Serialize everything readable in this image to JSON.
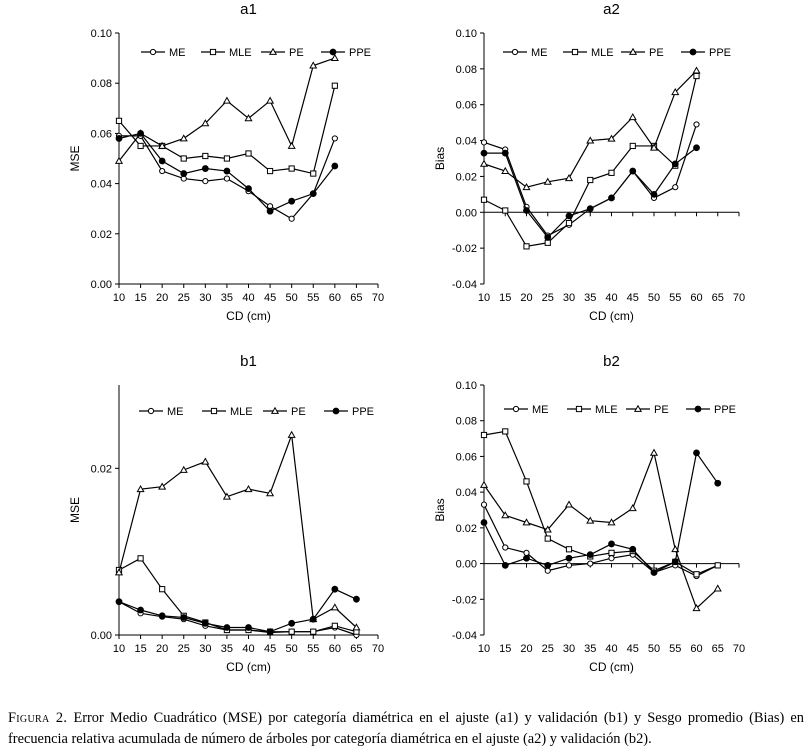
{
  "caption": {
    "label": "Figura 2.",
    "text": "Error Medio Cuadrático (MSE) por categoría diamétrica en el ajuste (a1) y validación (b1) y Sesgo promedio (Bias) en frecuencia relativa acumulada de número de árboles por categoría diamétrica en el ajuste (a2) y validación (b2)."
  },
  "chart_data": [
    {
      "id": "a1",
      "type": "line",
      "title": "a1",
      "xlabel": "CD (cm)",
      "ylabel": "MSE",
      "xlim": [
        10,
        70
      ],
      "ylim": [
        0,
        0.1
      ],
      "xticks": [
        "10",
        "15",
        "20",
        "25",
        "30",
        "35",
        "40",
        "45",
        "50",
        "55",
        "60",
        "65",
        "70"
      ],
      "yticks": [
        "0.00",
        "0.02",
        "0.04",
        "0.06",
        "0.08",
        "0.10"
      ],
      "x": [
        10,
        15,
        20,
        25,
        30,
        35,
        40,
        45,
        50,
        55,
        60
      ],
      "series": [
        {
          "name": "ME",
          "marker": "circle-open",
          "values": [
            0.059,
            0.059,
            0.045,
            0.042,
            0.041,
            0.042,
            0.037,
            0.031,
            0.026,
            0.036,
            0.058
          ]
        },
        {
          "name": "MLE",
          "marker": "square-open",
          "values": [
            0.065,
            0.055,
            0.055,
            0.05,
            0.051,
            0.05,
            0.052,
            0.045,
            0.046,
            0.044,
            0.079
          ]
        },
        {
          "name": "PE",
          "marker": "triangle-open",
          "values": [
            0.049,
            0.06,
            0.055,
            0.058,
            0.064,
            0.073,
            0.066,
            0.073,
            0.055,
            0.087,
            0.09
          ]
        },
        {
          "name": "PPE",
          "marker": "circle-filled",
          "values": [
            0.058,
            0.06,
            0.049,
            0.044,
            0.046,
            0.045,
            0.038,
            0.029,
            0.033,
            0.036,
            0.047
          ]
        }
      ]
    },
    {
      "id": "a2",
      "type": "line",
      "title": "a2",
      "xlabel": "CD (cm)",
      "ylabel": "Bias",
      "xlim": [
        10,
        70
      ],
      "ylim": [
        -0.04,
        0.1
      ],
      "xticks": [
        "10",
        "15",
        "20",
        "25",
        "30",
        "35",
        "40",
        "45",
        "50",
        "55",
        "60",
        "65",
        "70"
      ],
      "yticks": [
        "-0.04",
        "-0.02",
        "0.00",
        "0.02",
        "0.04",
        "0.06",
        "0.08",
        "0.10"
      ],
      "x": [
        10,
        15,
        20,
        25,
        30,
        35,
        40,
        45,
        50,
        55,
        60
      ],
      "series": [
        {
          "name": "ME",
          "marker": "circle-open",
          "values": [
            0.039,
            0.035,
            0.003,
            -0.013,
            -0.007,
            0.002,
            0.008,
            0.023,
            0.008,
            0.014,
            0.049
          ]
        },
        {
          "name": "MLE",
          "marker": "square-open",
          "values": [
            0.007,
            0.001,
            -0.019,
            -0.017,
            -0.006,
            0.018,
            0.022,
            0.037,
            0.037,
            0.026,
            0.076
          ]
        },
        {
          "name": "PE",
          "marker": "triangle-open",
          "values": [
            0.027,
            0.023,
            0.014,
            0.017,
            0.019,
            0.04,
            0.041,
            0.053,
            0.036,
            0.067,
            0.079
          ]
        },
        {
          "name": "PPE",
          "marker": "circle-filled",
          "values": [
            0.033,
            0.033,
            0.001,
            -0.014,
            -0.002,
            0.002,
            0.008,
            0.023,
            0.01,
            0.027,
            0.036
          ]
        }
      ]
    },
    {
      "id": "b1",
      "type": "line",
      "title": "b1",
      "xlabel": "CD (cm)",
      "ylabel": "MSE",
      "xlim": [
        10,
        70
      ],
      "ylim": [
        0,
        0.03
      ],
      "xticks": [
        "10",
        "15",
        "20",
        "25",
        "30",
        "35",
        "40",
        "45",
        "50",
        "55",
        "60",
        "65",
        "70"
      ],
      "yticks": [
        "0.00",
        "0.02"
      ],
      "ytick_values": [
        0,
        0.02
      ],
      "x": [
        10,
        15,
        20,
        25,
        30,
        35,
        40,
        45,
        50,
        55,
        60,
        65
      ],
      "series": [
        {
          "name": "ME",
          "marker": "circle-open",
          "values": [
            0.004,
            0.0026,
            0.0022,
            0.0019,
            0.0011,
            0.0006,
            0.0006,
            0.0003,
            0.0004,
            0.0004,
            0.0009,
            0.0
          ]
        },
        {
          "name": "MLE",
          "marker": "square-open",
          "values": [
            0.0078,
            0.0092,
            0.0055,
            0.0023,
            0.0015,
            0.0006,
            0.0006,
            0.0004,
            0.0004,
            0.0004,
            0.0011,
            0.0004
          ]
        },
        {
          "name": "PE",
          "marker": "triangle-open",
          "values": [
            0.0075,
            0.0175,
            0.0178,
            0.0198,
            0.0208,
            0.0166,
            0.0175,
            0.017,
            0.024,
            0.0019,
            0.0033,
            0.0009
          ]
        },
        {
          "name": "PPE",
          "marker": "circle-filled",
          "values": [
            0.004,
            0.003,
            0.0023,
            0.0021,
            0.0014,
            0.0009,
            0.0009,
            0.0004,
            0.0014,
            0.0019,
            0.0055,
            0.0043
          ]
        }
      ]
    },
    {
      "id": "b2",
      "type": "line",
      "title": "b2",
      "xlabel": "CD (cm)",
      "ylabel": "Bias",
      "xlim": [
        10,
        70
      ],
      "ylim": [
        -0.04,
        0.1
      ],
      "xticks": [
        "10",
        "15",
        "20",
        "25",
        "30",
        "35",
        "40",
        "45",
        "50",
        "55",
        "60",
        "65",
        "70"
      ],
      "yticks": [
        "-0.04",
        "-0.02",
        "0.00",
        "0.02",
        "0.04",
        "0.06",
        "0.08",
        "0.10"
      ],
      "x": [
        10,
        15,
        20,
        25,
        30,
        35,
        40,
        45,
        50,
        55,
        60,
        65
      ],
      "series": [
        {
          "name": "ME",
          "marker": "circle-open",
          "values": [
            0.033,
            0.009,
            0.006,
            -0.004,
            -0.001,
            0.0,
            0.003,
            0.005,
            -0.005,
            -0.001,
            -0.007,
            -0.001
          ]
        },
        {
          "name": "MLE",
          "marker": "square-open",
          "values": [
            0.072,
            0.074,
            0.046,
            0.014,
            0.008,
            0.004,
            0.006,
            0.007,
            -0.004,
            0.001,
            -0.006,
            -0.001
          ]
        },
        {
          "name": "PE",
          "marker": "triangle-open",
          "values": [
            0.044,
            0.027,
            0.023,
            0.019,
            0.033,
            0.024,
            0.023,
            0.031,
            0.062,
            0.008,
            -0.025,
            -0.014
          ]
        },
        {
          "name": "PPE",
          "marker": "circle-filled",
          "values": [
            0.023,
            -0.001,
            0.003,
            -0.001,
            0.003,
            0.005,
            0.011,
            0.008,
            -0.005,
            0.001,
            0.062,
            0.045
          ]
        }
      ]
    }
  ]
}
